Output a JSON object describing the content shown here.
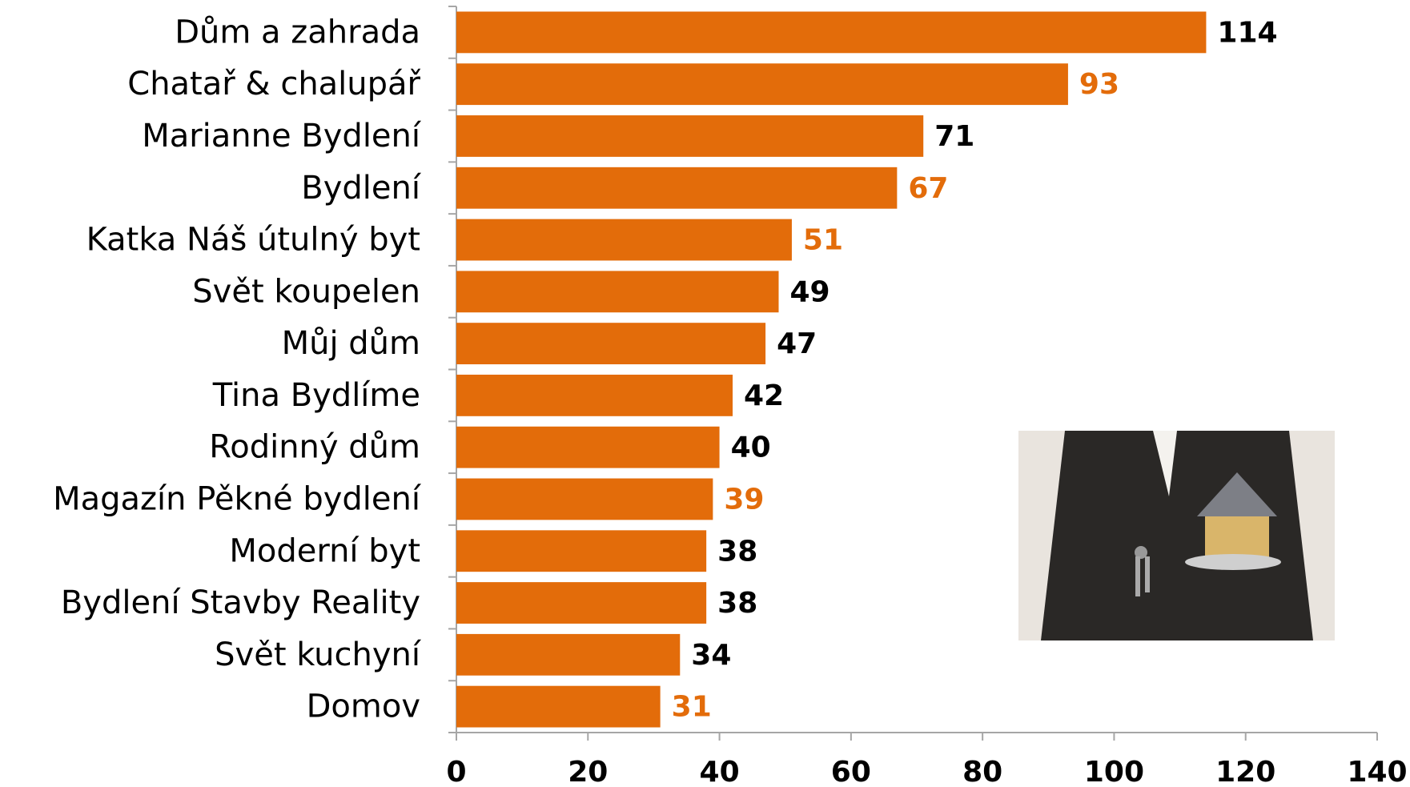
{
  "chart_data": {
    "type": "bar",
    "orientation": "horizontal",
    "categories": [
      "Dům a zahrada",
      "Chatař & chalupář",
      "Marianne Bydlení",
      "Bydlení",
      "Katka Náš útulný byt",
      "Svět koupelen",
      "Můj dům",
      "Tina Bydlíme",
      "Rodinný dům",
      "Magazín Pěkné bydlení",
      "Moderní byt",
      "Bydlení Stavby Reality",
      "Svět kuchyní",
      "Domov"
    ],
    "values": [
      114,
      93,
      71,
      67,
      51,
      49,
      47,
      42,
      40,
      39,
      38,
      38,
      34,
      31
    ],
    "color": "#e36c0a",
    "label_colors": [
      "#000000",
      "#e36c0a",
      "#000000",
      "#e36c0a",
      "#e36c0a",
      "#000000",
      "#000000",
      "#000000",
      "#000000",
      "#e36c0a",
      "#000000",
      "#000000",
      "#000000",
      "#e36c0a"
    ],
    "xlim": [
      0,
      140
    ],
    "xticks": [
      0,
      20,
      40,
      60,
      80,
      100,
      120,
      140
    ],
    "grid": false
  }
}
